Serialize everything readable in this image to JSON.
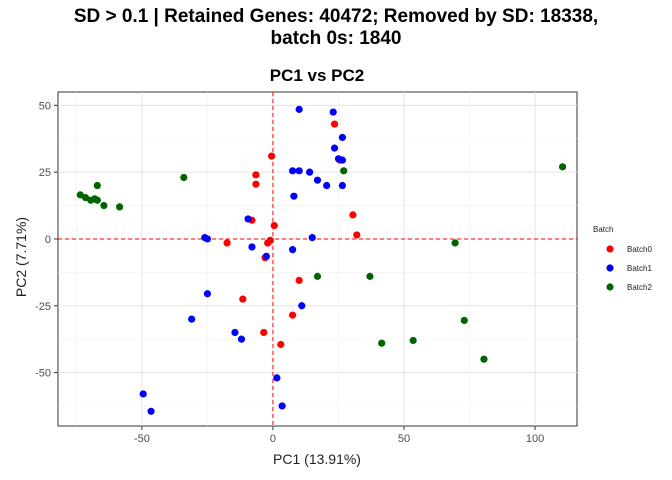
{
  "figure": {
    "title_line1": "SD > 0.1 | Retained Genes: 40472; Removed by SD: 18338,",
    "title_line2": "batch 0s: 1840"
  },
  "chart_data": {
    "type": "scatter",
    "title": "PC1 vs PC2",
    "xlabel": "PC1 (13.91%)",
    "ylabel": "PC2 (7.71%)",
    "xlim": [
      -82,
      116
    ],
    "ylim": [
      -70,
      55
    ],
    "xticks": [
      -50,
      0,
      50,
      100
    ],
    "yticks": [
      -50,
      -25,
      0,
      25,
      50
    ],
    "grid": true,
    "reference_lines": {
      "x": 0,
      "y": 0,
      "color": "#ff0000",
      "style": "dashed"
    },
    "legend": {
      "title": "Batch",
      "position": "right"
    },
    "series": [
      {
        "name": "Batch0",
        "color": "#ff0000",
        "points": [
          [
            -0.5,
            31
          ],
          [
            -6.5,
            24
          ],
          [
            -6.5,
            20.5
          ],
          [
            -8,
            7
          ],
          [
            0.5,
            5
          ],
          [
            -1,
            -0.5
          ],
          [
            -2,
            -1.5
          ],
          [
            -17.5,
            -1.5
          ],
          [
            -3,
            -7
          ],
          [
            -11.5,
            -22.5
          ],
          [
            7.5,
            -28.5
          ],
          [
            -3.5,
            -35
          ],
          [
            3,
            -39.5
          ],
          [
            10,
            -15.5
          ],
          [
            30.5,
            9
          ],
          [
            32,
            1.5
          ],
          [
            23.5,
            43
          ],
          [
            25.5,
            29.5
          ]
        ]
      },
      {
        "name": "Batch1",
        "color": "#0000ff",
        "points": [
          [
            10,
            48.5
          ],
          [
            23,
            47.5
          ],
          [
            26.5,
            38
          ],
          [
            23.5,
            34
          ],
          [
            25,
            30
          ],
          [
            26.5,
            29.5
          ],
          [
            7.5,
            25.5
          ],
          [
            10,
            25.5
          ],
          [
            14,
            25
          ],
          [
            17,
            22
          ],
          [
            20.5,
            20
          ],
          [
            26.5,
            20
          ],
          [
            8,
            16
          ],
          [
            -9.5,
            7.5
          ],
          [
            -8,
            -3
          ],
          [
            -2.5,
            -6.5
          ],
          [
            -26,
            0.5
          ],
          [
            -25,
            0
          ],
          [
            15,
            0.5
          ],
          [
            7.5,
            -4
          ],
          [
            -25,
            -20.5
          ],
          [
            -14.5,
            -35
          ],
          [
            -12,
            -37.5
          ],
          [
            -31,
            -30
          ],
          [
            11,
            -25
          ],
          [
            1.5,
            -52
          ],
          [
            3.5,
            -62.5
          ],
          [
            -49.5,
            -58
          ],
          [
            -46.5,
            -64.5
          ]
        ]
      },
      {
        "name": "Batch2",
        "color": "#006400",
        "points": [
          [
            -73.5,
            16.5
          ],
          [
            -71.5,
            15.5
          ],
          [
            -69.5,
            14.5
          ],
          [
            -68,
            15
          ],
          [
            -67,
            14.5
          ],
          [
            -64.5,
            12.5
          ],
          [
            -58.5,
            12
          ],
          [
            -67,
            20
          ],
          [
            -34,
            23
          ],
          [
            27,
            25.5
          ],
          [
            110.5,
            27
          ],
          [
            69.5,
            -1.5
          ],
          [
            37,
            -14
          ],
          [
            17,
            -14
          ],
          [
            73,
            -30.5
          ],
          [
            41.5,
            -39
          ],
          [
            53.5,
            -38
          ],
          [
            80.5,
            -45
          ]
        ]
      }
    ]
  }
}
